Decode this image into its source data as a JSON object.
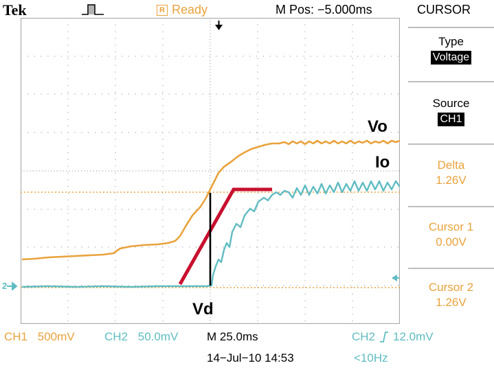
{
  "header": {
    "brand": "Tek",
    "status": "Ready",
    "status_icon_letter": "R",
    "m_pos": "M Pos: −5.000ms",
    "menu_title": "CURSOR"
  },
  "menu": {
    "type_label": "Type",
    "type_value": "Voltage",
    "source_label": "Source",
    "source_value": "CH1",
    "delta_label": "Delta",
    "delta_value": "1.26V",
    "cursor1_label": "Cursor 1",
    "cursor1_value": "0.00V",
    "cursor2_label": "Cursor 2",
    "cursor2_value": "1.26V"
  },
  "annotations": {
    "vo": "Vo",
    "io": "Io",
    "vd": "Vd"
  },
  "bottom": {
    "ch1_label": "CH1",
    "ch1_scale": "500mV",
    "ch2_label": "CH2",
    "ch2_scale": "50.0mV",
    "timebase": "M 25.0ms",
    "trigger_source": "CH2",
    "trigger_level": "12.0mV",
    "date_time": "14−Jul−10 14:53",
    "freq": "<10Hz",
    "ch2_marker": "2"
  },
  "colors": {
    "ch1": "#e9a23b",
    "ch2": "#5fbcc2",
    "annotation_line": "#c8102e",
    "grid": "#a8a8a8"
  }
}
